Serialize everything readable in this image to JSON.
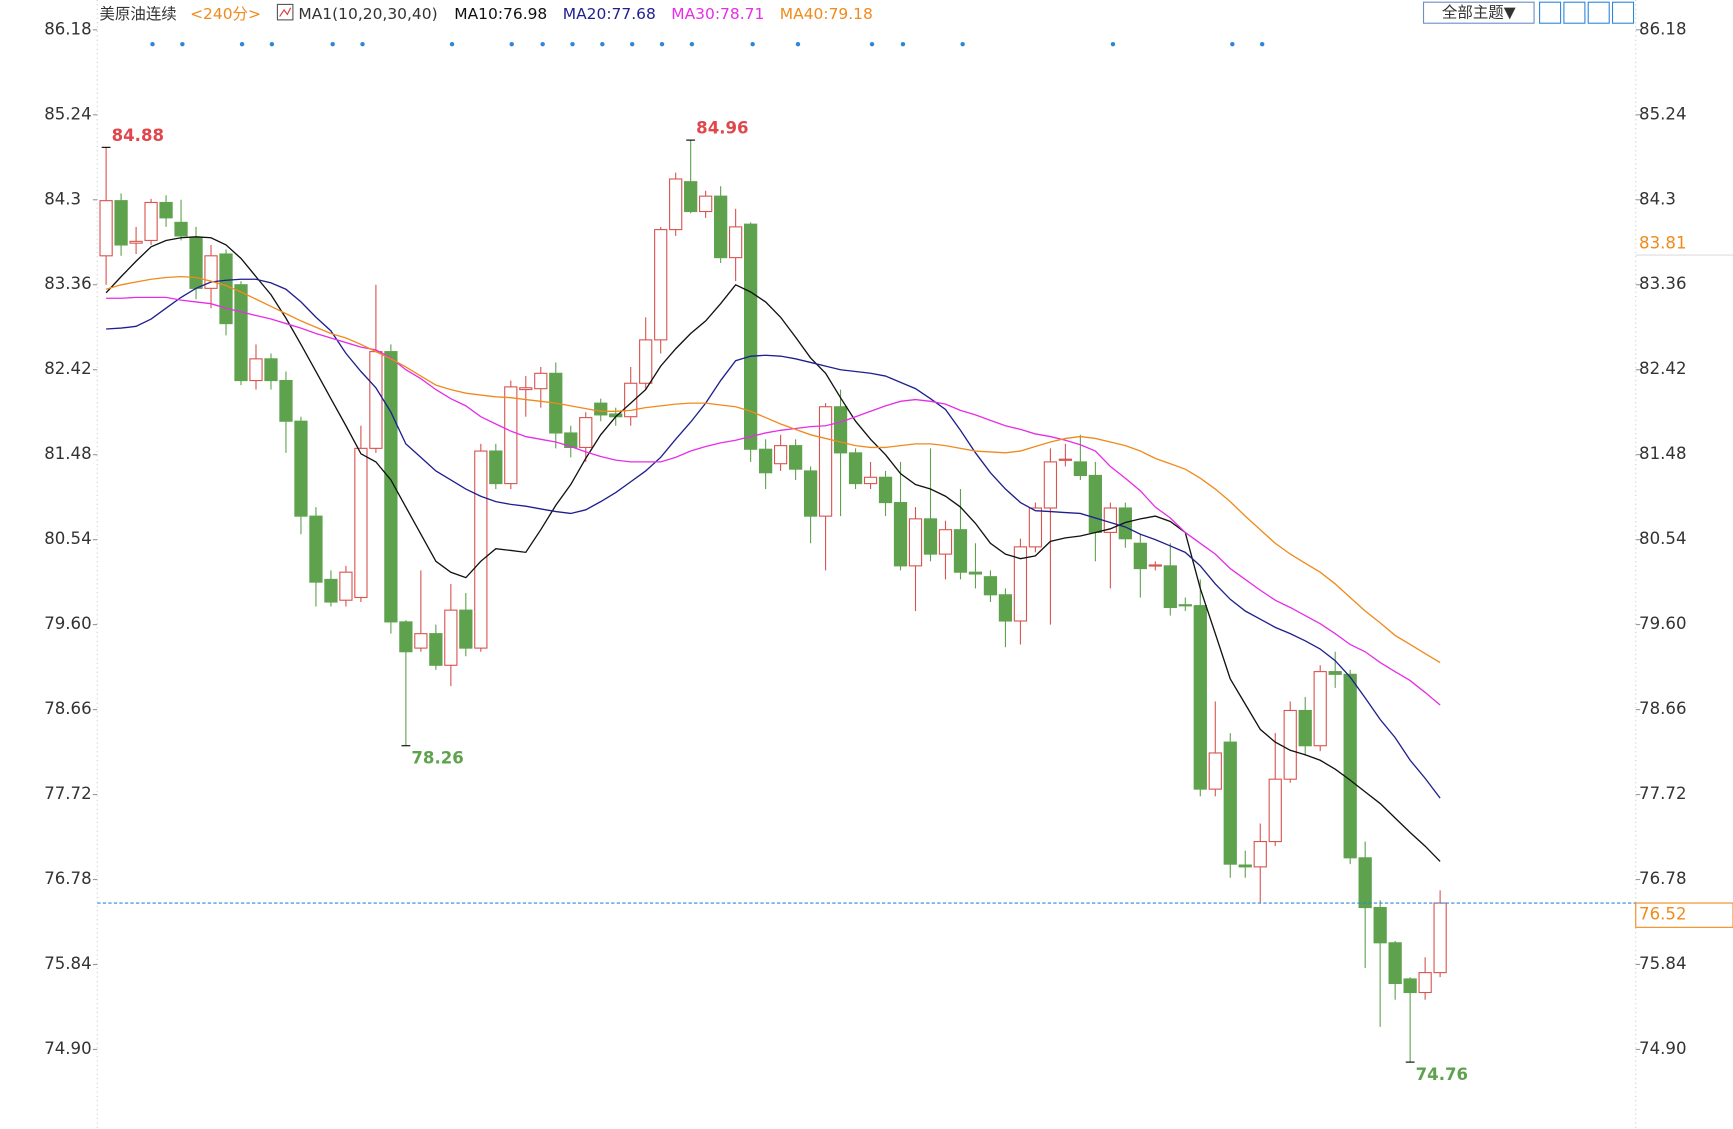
{
  "chart_data": {
    "type": "candlestick",
    "title": "美原油连续",
    "period": "<240分>",
    "indicator": "MA1(10,20,30,40)",
    "theme_button": "全部主题▼",
    "up_color": "#d9534f",
    "down_color": "#5ea24e",
    "ylim": [
      74.02,
      86.51
    ],
    "yticks": [
      86.18,
      85.24,
      84.3,
      83.36,
      82.42,
      81.48,
      80.54,
      {
        "value": 79.6,
        "label": "79.60"
      },
      78.66,
      77.72,
      76.78,
      75.84,
      {
        "value": 74.9,
        "label": "74.90"
      }
    ],
    "open": [
      83.68,
      84.29,
      83.82,
      83.85,
      84.27,
      84.05,
      83.88,
      83.32,
      83.7,
      83.36,
      82.3,
      82.54,
      82.3,
      81.85,
      80.8,
      80.1,
      79.87,
      79.9,
      81.55,
      82.62,
      79.63,
      79.34,
      79.5,
      79.15,
      79.76,
      79.34,
      81.52,
      81.16,
      82.2,
      82.21,
      82.38,
      81.72,
      81.56,
      82.05,
      81.93,
      81.9,
      82.27,
      82.75,
      83.97,
      84.5,
      84.17,
      84.34,
      83.66,
      84.03,
      81.54,
      81.38,
      81.58,
      81.3,
      80.8,
      82.01,
      81.5,
      81.16,
      81.23,
      80.95,
      80.25,
      80.77,
      80.38,
      80.65,
      80.18,
      80.13,
      79.93,
      79.64,
      80.46,
      80.89,
      81.42,
      81.4,
      81.25,
      80.62,
      80.89,
      80.5,
      80.25,
      80.25,
      79.82,
      79.81,
      77.78,
      78.3,
      76.94,
      76.92,
      77.2,
      77.89,
      78.65,
      78.26,
      79.08,
      79.05,
      77.02,
      76.47,
      76.08,
      75.68,
      75.53,
      75.75
    ],
    "high": [
      84.88,
      84.37,
      84.0,
      84.31,
      84.35,
      84.3,
      84.0,
      83.8,
      83.75,
      83.4,
      82.7,
      82.6,
      82.4,
      81.9,
      80.9,
      80.2,
      80.25,
      81.8,
      83.36,
      82.7,
      79.65,
      80.2,
      79.6,
      80.05,
      79.95,
      81.6,
      81.6,
      82.3,
      82.35,
      82.45,
      82.5,
      81.8,
      81.95,
      82.1,
      82.0,
      82.45,
      83.0,
      84.0,
      84.6,
      84.96,
      84.4,
      84.45,
      84.2,
      84.05,
      81.65,
      81.7,
      81.65,
      81.35,
      82.05,
      82.2,
      81.55,
      81.4,
      81.3,
      81.4,
      80.9,
      81.55,
      80.75,
      81.1,
      80.5,
      80.2,
      80.0,
      80.55,
      80.95,
      81.55,
      81.6,
      81.7,
      81.4,
      80.95,
      80.95,
      80.6,
      80.3,
      80.5,
      79.9,
      80.1,
      78.75,
      78.4,
      77.1,
      77.4,
      78.4,
      78.75,
      78.8,
      79.15,
      79.3,
      79.1,
      77.2,
      76.55,
      76.1,
      75.7,
      75.92,
      76.66
    ],
    "low": [
      83.36,
      83.68,
      83.7,
      83.8,
      84.0,
      83.85,
      83.2,
      83.1,
      82.8,
      82.25,
      82.2,
      82.2,
      81.5,
      80.6,
      79.8,
      79.8,
      79.8,
      79.85,
      81.5,
      79.5,
      78.26,
      79.3,
      79.1,
      78.92,
      79.25,
      79.3,
      81.1,
      81.1,
      81.9,
      82.0,
      81.55,
      81.45,
      81.4,
      81.85,
      81.8,
      81.8,
      82.2,
      82.6,
      83.9,
      84.15,
      84.1,
      83.6,
      83.4,
      81.4,
      81.1,
      81.3,
      81.2,
      80.5,
      80.2,
      80.8,
      81.1,
      81.1,
      80.8,
      80.2,
      79.75,
      80.3,
      80.1,
      80.1,
      80.0,
      79.85,
      79.35,
      79.38,
      80.4,
      79.6,
      81.35,
      81.2,
      80.3,
      80.0,
      80.45,
      79.9,
      80.2,
      79.7,
      79.75,
      77.7,
      77.7,
      76.8,
      76.8,
      76.52,
      77.15,
      77.85,
      78.15,
      78.2,
      78.9,
      76.95,
      75.8,
      75.15,
      75.45,
      74.76,
      75.45,
      75.7
    ],
    "close": [
      84.29,
      83.8,
      83.84,
      84.27,
      84.1,
      83.9,
      83.32,
      83.68,
      82.93,
      82.3,
      82.54,
      82.3,
      81.85,
      80.8,
      80.07,
      79.85,
      80.18,
      81.55,
      82.62,
      79.63,
      79.3,
      79.5,
      79.15,
      79.76,
      79.34,
      81.52,
      81.16,
      82.23,
      82.22,
      82.38,
      81.72,
      81.56,
      81.89,
      81.92,
      81.9,
      82.27,
      82.75,
      83.97,
      84.53,
      84.17,
      84.34,
      83.66,
      84.0,
      81.54,
      81.28,
      81.58,
      81.32,
      80.8,
      82.01,
      81.5,
      81.16,
      81.23,
      80.95,
      80.25,
      80.77,
      80.38,
      80.65,
      80.18,
      80.16,
      79.93,
      79.64,
      80.46,
      80.89,
      81.4,
      81.43,
      81.25,
      80.62,
      80.89,
      80.55,
      80.22,
      80.26,
      79.79,
      79.81,
      77.78,
      78.18,
      76.95,
      76.92,
      77.2,
      77.89,
      78.65,
      78.26,
      79.08,
      79.05,
      77.02,
      76.47,
      76.08,
      75.63,
      75.53,
      75.75,
      76.52
    ],
    "series": [
      {
        "name": "MA10:76.98",
        "color": "#111111",
        "values": [
          83.27,
          83.45,
          83.62,
          83.78,
          83.85,
          83.88,
          83.89,
          83.88,
          83.8,
          83.65,
          83.45,
          83.25,
          82.99,
          82.7,
          82.4,
          82.1,
          81.8,
          81.49,
          81.4,
          81.2,
          80.9,
          80.6,
          80.3,
          80.18,
          80.12,
          80.3,
          80.44,
          80.42,
          80.4,
          80.65,
          80.92,
          81.15,
          81.44,
          81.7,
          81.9,
          82.05,
          82.2,
          82.46,
          82.65,
          82.82,
          82.96,
          83.15,
          83.36,
          83.28,
          83.17,
          83.0,
          82.78,
          82.55,
          82.38,
          82.11,
          81.85,
          81.65,
          81.48,
          81.27,
          81.15,
          81.1,
          81.02,
          80.9,
          80.72,
          80.5,
          80.38,
          80.33,
          80.36,
          80.52,
          80.56,
          80.58,
          80.62,
          80.66,
          80.73,
          80.77,
          80.8,
          80.74,
          80.62,
          80.0,
          79.5,
          79.0,
          78.72,
          78.44,
          78.3,
          78.21,
          78.16,
          78.1,
          78.0,
          77.88,
          77.75,
          77.62,
          77.46,
          77.3,
          77.15,
          76.98
        ]
      },
      {
        "name": "MA20:77.68",
        "color": "#1f1f8f",
        "values": [
          82.87,
          82.88,
          82.9,
          82.98,
          83.1,
          83.22,
          83.32,
          83.39,
          83.41,
          83.42,
          83.42,
          83.38,
          83.31,
          83.17,
          83.0,
          82.85,
          82.6,
          82.4,
          82.22,
          81.95,
          81.6,
          81.45,
          81.3,
          81.2,
          81.1,
          81.02,
          80.96,
          80.93,
          80.91,
          80.88,
          80.85,
          80.83,
          80.87,
          80.96,
          81.06,
          81.18,
          81.3,
          81.45,
          81.65,
          81.84,
          82.05,
          82.3,
          82.52,
          82.57,
          82.58,
          82.57,
          82.54,
          82.5,
          82.46,
          82.42,
          82.4,
          82.38,
          82.35,
          82.28,
          82.21,
          82.1,
          81.98,
          81.75,
          81.5,
          81.28,
          81.1,
          80.95,
          80.86,
          80.85,
          80.84,
          80.83,
          80.78,
          80.73,
          80.68,
          80.6,
          80.54,
          80.47,
          80.4,
          80.25,
          80.05,
          79.88,
          79.75,
          79.66,
          79.57,
          79.5,
          79.42,
          79.33,
          79.2,
          79.02,
          78.79,
          78.55,
          78.35,
          78.1,
          77.9,
          77.68
        ]
      },
      {
        "name": "MA30:78.71",
        "color": "#e62ee6",
        "values": [
          83.21,
          83.21,
          83.22,
          83.22,
          83.22,
          83.19,
          83.17,
          83.15,
          83.1,
          83.06,
          83.02,
          82.98,
          82.93,
          82.88,
          82.82,
          82.77,
          82.72,
          82.67,
          82.64,
          82.55,
          82.42,
          82.32,
          82.2,
          82.1,
          82.02,
          81.9,
          81.82,
          81.74,
          81.68,
          81.65,
          81.62,
          81.57,
          81.51,
          81.46,
          81.42,
          81.4,
          81.4,
          81.4,
          81.45,
          81.52,
          81.57,
          81.61,
          81.64,
          81.68,
          81.72,
          81.75,
          81.77,
          81.79,
          81.8,
          81.84,
          81.9,
          81.96,
          82.02,
          82.07,
          82.09,
          82.07,
          82.04,
          81.97,
          81.92,
          81.86,
          81.8,
          81.76,
          81.71,
          81.68,
          81.64,
          81.59,
          81.52,
          81.35,
          81.22,
          81.08,
          80.9,
          80.78,
          80.62,
          80.5,
          80.38,
          80.22,
          80.1,
          79.98,
          79.87,
          79.79,
          79.7,
          79.61,
          79.5,
          79.38,
          79.3,
          79.18,
          79.08,
          78.98,
          78.85,
          78.71
        ]
      },
      {
        "name": "MA40:79.18",
        "color": "#f08a1c",
        "values": [
          83.31,
          83.36,
          83.39,
          83.42,
          83.44,
          83.45,
          83.44,
          83.4,
          83.35,
          83.28,
          83.2,
          83.12,
          83.04,
          82.96,
          82.89,
          82.82,
          82.77,
          82.7,
          82.62,
          82.54,
          82.45,
          82.35,
          82.25,
          82.2,
          82.16,
          82.14,
          82.12,
          82.11,
          82.09,
          82.07,
          82.05,
          82.02,
          81.99,
          81.96,
          81.96,
          81.97,
          82.0,
          82.02,
          82.04,
          82.05,
          82.05,
          82.03,
          82.01,
          81.96,
          81.89,
          81.82,
          81.76,
          81.7,
          81.66,
          81.62,
          81.58,
          81.56,
          81.56,
          81.58,
          81.6,
          81.6,
          81.58,
          81.55,
          81.52,
          81.51,
          81.5,
          81.52,
          81.57,
          81.62,
          81.66,
          81.68,
          81.66,
          81.62,
          81.58,
          81.52,
          81.44,
          81.38,
          81.32,
          81.22,
          81.1,
          80.96,
          80.8,
          80.65,
          80.5,
          80.38,
          80.28,
          80.18,
          80.05,
          79.9,
          79.75,
          79.62,
          79.48,
          79.38,
          79.28,
          79.18
        ]
      }
    ],
    "annotations": [
      {
        "value": 84.88,
        "color": "#e0474c"
      },
      {
        "value": 84.96,
        "color": "#e0474c"
      },
      {
        "value": 78.26,
        "color": "#5ea24e"
      },
      {
        "value": 74.76,
        "color": "#5ea24e"
      }
    ],
    "current_price": 76.52,
    "current_color": "#f08a1c",
    "price_line_color": "#2f86d8",
    "right_marker": 83.81
  }
}
